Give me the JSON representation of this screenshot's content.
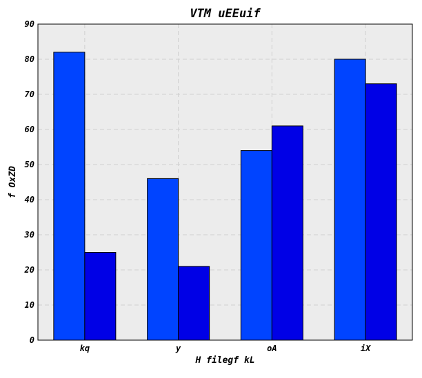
{
  "chart_data": {
    "type": "bar",
    "title": "VTM uEEuif",
    "xlabel": "H filegf kL",
    "ylabel": "f OxZD",
    "categories": [
      "kq",
      "y",
      "oA",
      "iX"
    ],
    "series": [
      {
        "values": [
          82,
          46,
          54,
          80
        ],
        "color": "#0044ff"
      },
      {
        "values": [
          25,
          21,
          61,
          73
        ],
        "color": "#0000e6"
      }
    ],
    "ylim": [
      0,
      90
    ],
    "yticks": [
      0,
      10,
      20,
      30,
      40,
      50,
      60,
      70,
      80,
      90
    ],
    "grid": true,
    "legend": "none",
    "plot_background": "#ececec"
  }
}
